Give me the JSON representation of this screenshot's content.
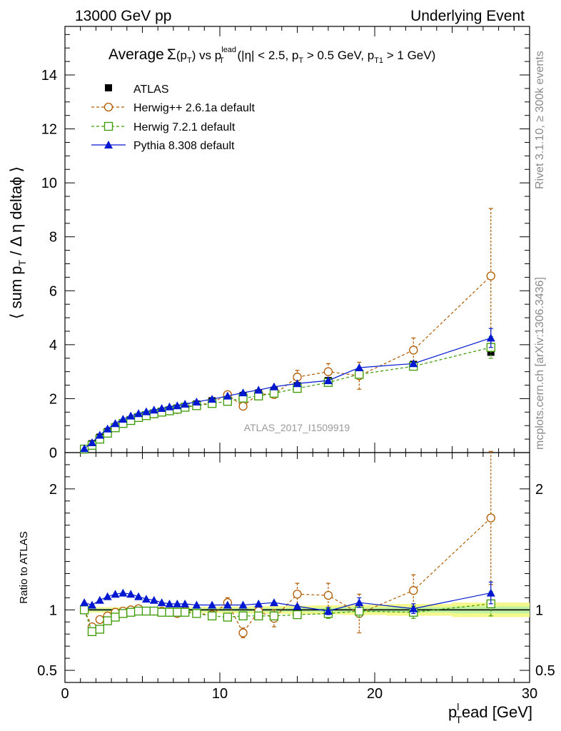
{
  "header": {
    "left": "13000 GeV pp",
    "right": "Underlying Event"
  },
  "side": {
    "rivet": "Rivet 3.1.10, ≥ 300k events",
    "mcplots": "mcplots.cern.ch [arXiv:1306.3436]"
  },
  "watermark": "ATLAS_2017_I1509919",
  "chart_data": {
    "type": "line",
    "title": "Average Σ(pT) vs pT lead (|η| < 2.5, pT > 0.5 GeV, pT1 > 1 GeV)",
    "title_parts": {
      "a": "Average",
      "b": "Σ",
      "c": "(p",
      "c_sub": "T",
      "d": ") vs p",
      "d_sup": "lead",
      "d_sub": "T",
      "e": " (|η| < 2.5, p",
      "e_sub": "T",
      "f": " > 0.5 GeV, p",
      "f_sub": "T1",
      "g": " > 1 GeV)"
    },
    "xlabel": {
      "main": "p",
      "sub": "T",
      "sup": "l",
      "rest": "ead [GeV]"
    },
    "ylabel_main": {
      "pre": "⟨ sum p",
      "sub": "T",
      "post": " / Δ η deltaϕ ⟩"
    },
    "ylabel_ratio": "Ratio to ATLAS",
    "xlim": [
      0,
      30
    ],
    "ylim_main": [
      0,
      15.8
    ],
    "ylim_ratio": [
      0.4,
      2.3
    ],
    "x_ticks": [
      0,
      10,
      20,
      30
    ],
    "y_ticks_main": [
      0,
      2,
      4,
      6,
      8,
      10,
      12,
      14
    ],
    "y_ticks_ratio": [
      0.5,
      1,
      2
    ],
    "x": [
      1.25,
      1.75,
      2.25,
      2.75,
      3.25,
      3.75,
      4.25,
      4.75,
      5.25,
      5.75,
      6.25,
      6.75,
      7.25,
      7.75,
      8.5,
      9.5,
      10.5,
      11.5,
      12.5,
      13.5,
      15.0,
      17.0,
      19.0,
      22.5,
      27.5
    ],
    "series": [
      {
        "name": "ATLAS",
        "color": "#000000",
        "marker": "filled-square",
        "values": [
          0.13,
          0.33,
          0.57,
          0.78,
          0.96,
          1.11,
          1.21,
          1.31,
          1.39,
          1.46,
          1.53,
          1.58,
          1.65,
          1.71,
          1.8,
          1.92,
          2.02,
          2.12,
          2.21,
          2.31,
          2.48,
          2.67,
          2.93,
          3.27,
          3.72
        ],
        "ratio": [
          1,
          1,
          1,
          1,
          1,
          1,
          1,
          1,
          1,
          1,
          1,
          1,
          1,
          1,
          1,
          1,
          1,
          1,
          1,
          1,
          1,
          1,
          1,
          1,
          1
        ],
        "ratio_band_inner": [
          0.012,
          0.012,
          0.012,
          0.012,
          0.012,
          0.012,
          0.012,
          0.012,
          0.012,
          0.012,
          0.012,
          0.012,
          0.012,
          0.012,
          0.013,
          0.013,
          0.014,
          0.014,
          0.015,
          0.016,
          0.017,
          0.018,
          0.02,
          0.022,
          0.028
        ],
        "ratio_band_outer": [
          0.022,
          0.022,
          0.022,
          0.022,
          0.022,
          0.022,
          0.022,
          0.022,
          0.022,
          0.022,
          0.022,
          0.022,
          0.022,
          0.022,
          0.024,
          0.025,
          0.027,
          0.028,
          0.03,
          0.032,
          0.035,
          0.038,
          0.042,
          0.048,
          0.06
        ]
      },
      {
        "name": "Herwig++ 2.6.1a default",
        "color": "#b05a00",
        "marker": "open-circle",
        "dashed": true,
        "values": [
          0.13,
          0.28,
          0.53,
          0.74,
          0.94,
          1.1,
          1.21,
          1.32,
          1.38,
          1.44,
          1.51,
          1.55,
          1.6,
          1.7,
          1.75,
          1.85,
          2.15,
          1.72,
          2.18,
          2.15,
          2.8,
          3.0,
          2.85,
          3.8,
          6.55
        ],
        "errors": [
          0.01,
          0.01,
          0.02,
          0.02,
          0.02,
          0.02,
          0.02,
          0.02,
          0.02,
          0.02,
          0.02,
          0.02,
          0.03,
          0.03,
          0.04,
          0.05,
          0.08,
          0.1,
          0.15,
          0.18,
          0.25,
          0.3,
          0.5,
          0.45,
          2.5
        ],
        "ratio": [
          1.0,
          0.86,
          0.92,
          0.95,
          0.98,
          0.99,
          1.0,
          1.01,
          0.99,
          0.99,
          0.99,
          0.98,
          0.97,
          0.99,
          0.97,
          0.96,
          1.06,
          0.81,
          0.99,
          0.93,
          1.13,
          1.12,
          0.97,
          1.16,
          1.76
        ],
        "ratio_errors": [
          0.01,
          0.01,
          0.01,
          0.01,
          0.01,
          0.01,
          0.01,
          0.01,
          0.01,
          0.01,
          0.01,
          0.01,
          0.01,
          0.01,
          0.02,
          0.02,
          0.04,
          0.04,
          0.06,
          0.07,
          0.09,
          0.1,
          0.16,
          0.13,
          0.55
        ]
      },
      {
        "name": "Herwig 7.2.1 default",
        "color": "#3a9a00",
        "marker": "open-square",
        "dashed": true,
        "values": [
          0.13,
          0.27,
          0.5,
          0.72,
          0.92,
          1.08,
          1.19,
          1.3,
          1.37,
          1.44,
          1.5,
          1.55,
          1.61,
          1.68,
          1.74,
          1.82,
          1.9,
          2.02,
          2.1,
          2.2,
          2.38,
          2.6,
          2.9,
          3.2,
          3.9
        ],
        "errors": [
          0.01,
          0.01,
          0.01,
          0.01,
          0.02,
          0.02,
          0.02,
          0.02,
          0.02,
          0.02,
          0.02,
          0.02,
          0.02,
          0.02,
          0.03,
          0.03,
          0.04,
          0.05,
          0.06,
          0.07,
          0.08,
          0.1,
          0.15,
          0.15,
          0.4
        ],
        "ratio": [
          1.0,
          0.82,
          0.84,
          0.91,
          0.94,
          0.97,
          0.98,
          0.99,
          0.99,
          0.99,
          0.98,
          0.98,
          0.98,
          0.98,
          0.97,
          0.95,
          0.94,
          0.95,
          0.95,
          0.95,
          0.96,
          0.97,
          0.99,
          0.98,
          1.05
        ],
        "ratio_errors": [
          0.01,
          0.01,
          0.01,
          0.01,
          0.01,
          0.01,
          0.01,
          0.01,
          0.01,
          0.01,
          0.01,
          0.01,
          0.01,
          0.01,
          0.02,
          0.02,
          0.02,
          0.02,
          0.03,
          0.03,
          0.03,
          0.04,
          0.05,
          0.05,
          0.1
        ]
      },
      {
        "name": "Pythia 8.308 default",
        "color": "#0018d0",
        "marker": "filled-triangle",
        "values": [
          0.15,
          0.37,
          0.65,
          0.88,
          1.08,
          1.24,
          1.36,
          1.45,
          1.52,
          1.58,
          1.64,
          1.7,
          1.74,
          1.8,
          1.88,
          1.98,
          2.1,
          2.22,
          2.32,
          2.44,
          2.56,
          2.67,
          3.15,
          3.3,
          4.25
        ],
        "errors": [
          0.01,
          0.01,
          0.01,
          0.01,
          0.01,
          0.01,
          0.01,
          0.01,
          0.01,
          0.02,
          0.02,
          0.02,
          0.02,
          0.02,
          0.02,
          0.03,
          0.03,
          0.04,
          0.05,
          0.06,
          0.06,
          0.08,
          0.12,
          0.12,
          0.35
        ],
        "ratio": [
          1.06,
          1.04,
          1.08,
          1.11,
          1.13,
          1.14,
          1.13,
          1.11,
          1.09,
          1.08,
          1.06,
          1.05,
          1.05,
          1.05,
          1.04,
          1.04,
          1.04,
          1.04,
          1.05,
          1.06,
          1.03,
          0.99,
          1.06,
          1.01,
          1.14
        ],
        "ratio_errors": [
          0.01,
          0.01,
          0.01,
          0.01,
          0.01,
          0.01,
          0.01,
          0.01,
          0.01,
          0.01,
          0.01,
          0.01,
          0.01,
          0.01,
          0.01,
          0.01,
          0.01,
          0.02,
          0.02,
          0.02,
          0.02,
          0.03,
          0.04,
          0.04,
          0.09
        ]
      }
    ],
    "legend_position": "top-left"
  }
}
